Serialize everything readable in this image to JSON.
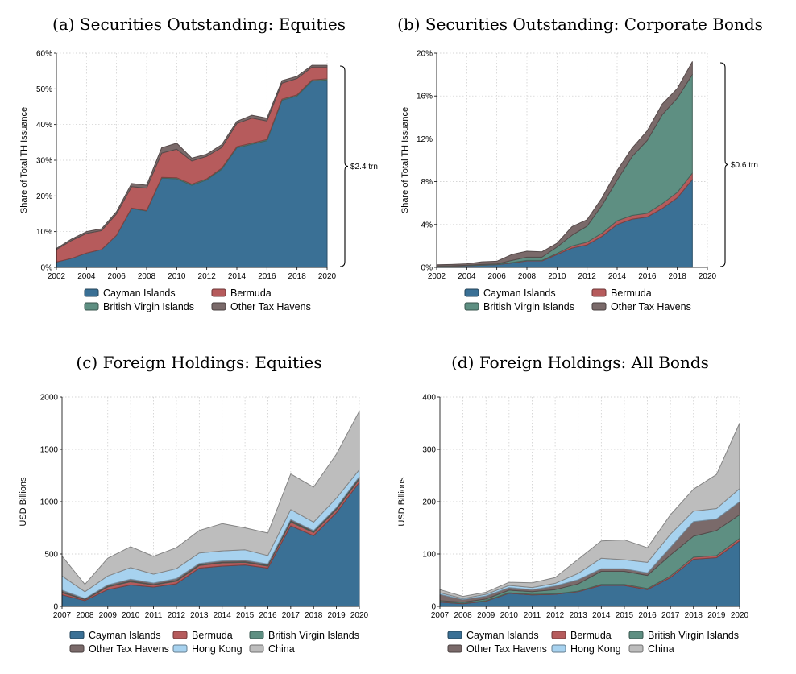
{
  "colors": {
    "cayman": "#3a7095",
    "bermuda": "#b65b5c",
    "bvi": "#5e8f82",
    "other": "#7a6a6a",
    "hongkong": "#a7d2ef",
    "china": "#bdbdbd"
  },
  "chart_data": [
    {
      "id": "a",
      "type": "area",
      "title": "(a) Securities Outstanding: Equities",
      "ylabel": "Share of Total TH Issuance",
      "x": [
        2002,
        2003,
        2004,
        2005,
        2006,
        2007,
        2008,
        2009,
        2010,
        2011,
        2012,
        2013,
        2014,
        2015,
        2016,
        2017,
        2018,
        2019,
        2020
      ],
      "xticks": [
        2002,
        2004,
        2006,
        2008,
        2010,
        2012,
        2014,
        2016,
        2018,
        2020
      ],
      "ylim": [
        0,
        60
      ],
      "yticks": [
        0,
        10,
        20,
        30,
        40,
        50,
        60
      ],
      "ytick_labels": [
        "0%",
        "10%",
        "20%",
        "30%",
        "40%",
        "50%",
        "60%"
      ],
      "series": [
        {
          "name": "Cayman Islands",
          "key": "cayman",
          "values": [
            1.5,
            2.5,
            4,
            5,
            9,
            16.5,
            15.8,
            25,
            24.8,
            23,
            24.5,
            27.5,
            33.5,
            34.5,
            35.5,
            46.8,
            48,
            52.2,
            52.5
          ]
        },
        {
          "name": "British Virgin Islands",
          "key": "bvi",
          "values": [
            0,
            0,
            0,
            0,
            0,
            0.1,
            0.1,
            0.2,
            0.3,
            0.3,
            0.3,
            0.3,
            0.3,
            0.3,
            0.3,
            0.3,
            0.3,
            0.3,
            0.3
          ]
        },
        {
          "name": "Bermuda",
          "key": "bermuda",
          "values": [
            3.5,
            5,
            5.5,
            5.3,
            6,
            6,
            6.3,
            6.8,
            8,
            6.5,
            6.3,
            5.8,
            6.5,
            7,
            5.2,
            4.5,
            4.6,
            3.6,
            3.3
          ]
        },
        {
          "name": "Other Tax Havens",
          "key": "other",
          "values": [
            0.3,
            0.4,
            0.5,
            0.5,
            0.6,
            0.9,
            0.8,
            1.5,
            1.7,
            0.8,
            0.6,
            0.8,
            0.6,
            0.8,
            0.8,
            0.7,
            0.6,
            0.5,
            0.5
          ]
        }
      ],
      "legend": [
        [
          "Cayman Islands",
          "cayman"
        ],
        [
          "Bermuda",
          "bermuda"
        ],
        [
          "British Virgin Islands",
          "bvi"
        ],
        [
          "Other Tax Havens",
          "other"
        ]
      ],
      "brace_label": "$2.4 trn"
    },
    {
      "id": "b",
      "type": "area",
      "title": "(b) Securities Outstanding: Corporate Bonds",
      "ylabel": "Share of Total TH Issuance",
      "x": [
        2002,
        2003,
        2004,
        2005,
        2006,
        2007,
        2008,
        2009,
        2010,
        2011,
        2012,
        2013,
        2014,
        2015,
        2016,
        2017,
        2018,
        2019
      ],
      "xticks": [
        2002,
        2004,
        2006,
        2008,
        2010,
        2012,
        2014,
        2016,
        2018,
        2020
      ],
      "ylim": [
        0,
        20
      ],
      "yticks": [
        0,
        4,
        8,
        12,
        16,
        20
      ],
      "ytick_labels": [
        "0%",
        "4%",
        "8%",
        "12%",
        "16%",
        "20%"
      ],
      "series": [
        {
          "name": "Cayman Islands",
          "key": "cayman",
          "values": [
            0.1,
            0.1,
            0.15,
            0.2,
            0.25,
            0.4,
            0.6,
            0.6,
            1.2,
            1.8,
            2.1,
            2.9,
            4,
            4.5,
            4.7,
            5.5,
            6.5,
            8.2
          ]
        },
        {
          "name": "Bermuda",
          "key": "bermuda",
          "values": [
            0.02,
            0.02,
            0.02,
            0.02,
            0.02,
            0.05,
            0.05,
            0.05,
            0.1,
            0.2,
            0.25,
            0.3,
            0.35,
            0.35,
            0.35,
            0.45,
            0.5,
            0.6
          ]
        },
        {
          "name": "British Virgin Islands",
          "key": "bvi",
          "values": [
            0.02,
            0.03,
            0.03,
            0.05,
            0.05,
            0.2,
            0.3,
            0.3,
            0.6,
            1,
            1.5,
            2.6,
            3.8,
            5.5,
            6.8,
            8.3,
            8.8,
            9.2
          ]
        },
        {
          "name": "Other Tax Havens",
          "key": "other",
          "values": [
            0.1,
            0.12,
            0.13,
            0.25,
            0.25,
            0.55,
            0.55,
            0.5,
            0.35,
            0.8,
            0.6,
            0.7,
            0.9,
            0.8,
            0.9,
            1,
            0.9,
            1.2
          ]
        }
      ],
      "legend": [
        [
          "Cayman Islands",
          "cayman"
        ],
        [
          "Bermuda",
          "bermuda"
        ],
        [
          "British Virgin Islands",
          "bvi"
        ],
        [
          "Other Tax Havens",
          "other"
        ]
      ],
      "brace_label": "$0.6 trn"
    },
    {
      "id": "c",
      "type": "area",
      "title": "(c) Foreign Holdings: Equities",
      "ylabel": "USD Billions",
      "x": [
        2007,
        2008,
        2009,
        2010,
        2011,
        2012,
        2013,
        2014,
        2015,
        2016,
        2017,
        2018,
        2019,
        2020
      ],
      "xticks": [
        2007,
        2008,
        2009,
        2010,
        2011,
        2012,
        2013,
        2014,
        2015,
        2016,
        2017,
        2018,
        2019,
        2020
      ],
      "ylim": [
        0,
        2000
      ],
      "yticks": [
        0,
        500,
        1000,
        1500,
        2000
      ],
      "ytick_labels": [
        "0",
        "500",
        "1000",
        "1500",
        "2000"
      ],
      "series": [
        {
          "name": "Cayman Islands",
          "key": "cayman",
          "values": [
            110,
            55,
            160,
            205,
            185,
            215,
            365,
            385,
            395,
            365,
            770,
            675,
            895,
            1185
          ]
        },
        {
          "name": "Bermuda",
          "key": "bermuda",
          "values": [
            20,
            10,
            25,
            30,
            20,
            25,
            25,
            30,
            25,
            20,
            35,
            30,
            30,
            30
          ]
        },
        {
          "name": "British Virgin Islands",
          "key": "bvi",
          "values": [
            5,
            2,
            5,
            5,
            3,
            5,
            5,
            5,
            5,
            5,
            10,
            7,
            8,
            10
          ]
        },
        {
          "name": "Other Tax Havens",
          "key": "other",
          "values": [
            20,
            8,
            15,
            20,
            15,
            20,
            15,
            15,
            15,
            15,
            15,
            12,
            12,
            15
          ]
        },
        {
          "name": "Hong Kong",
          "key": "hongkong",
          "values": [
            135,
            65,
            85,
            110,
            85,
            95,
            100,
            95,
            100,
            80,
            95,
            80,
            90,
            65
          ]
        },
        {
          "name": "China",
          "key": "china",
          "values": [
            190,
            70,
            170,
            200,
            170,
            200,
            215,
            260,
            210,
            215,
            340,
            335,
            420,
            560
          ]
        }
      ],
      "legend": [
        [
          "Cayman Islands",
          "cayman"
        ],
        [
          "Bermuda",
          "bermuda"
        ],
        [
          "British Virgin Islands",
          "bvi"
        ],
        [
          "Other Tax Havens",
          "other"
        ],
        [
          "Hong Kong",
          "hongkong"
        ],
        [
          "China",
          "china"
        ]
      ]
    },
    {
      "id": "d",
      "type": "area",
      "title": "(d) Foreign Holdings: All Bonds",
      "ylabel": "USD Billions",
      "x": [
        2007,
        2008,
        2009,
        2010,
        2011,
        2012,
        2013,
        2014,
        2015,
        2016,
        2017,
        2018,
        2019,
        2020
      ],
      "xticks": [
        2007,
        2008,
        2009,
        2010,
        2011,
        2012,
        2013,
        2014,
        2015,
        2016,
        2017,
        2018,
        2019,
        2020
      ],
      "ylim": [
        0,
        400
      ],
      "yticks": [
        0,
        100,
        200,
        300,
        400
      ],
      "ytick_labels": [
        "0",
        "100",
        "200",
        "300",
        "400"
      ],
      "series": [
        {
          "name": "Cayman Islands",
          "key": "cayman",
          "values": [
            8,
            5,
            10,
            25,
            22,
            23,
            28,
            40,
            40,
            32,
            55,
            90,
            93,
            125
          ]
        },
        {
          "name": "Bermuda",
          "key": "bermuda",
          "values": [
            1,
            1,
            1,
            1,
            1,
            1,
            1,
            2,
            2,
            2,
            3,
            4,
            4,
            5
          ]
        },
        {
          "name": "British Virgin Islands",
          "key": "bvi",
          "values": [
            2,
            2,
            3,
            5,
            5,
            8,
            14,
            25,
            25,
            25,
            40,
            40,
            48,
            45
          ]
        },
        {
          "name": "Other Tax Havens",
          "key": "other",
          "values": [
            12,
            5,
            6,
            5,
            4,
            7,
            8,
            5,
            5,
            5,
            15,
            28,
            22,
            25
          ]
        },
        {
          "name": "Hong Kong",
          "key": "hongkong",
          "values": [
            3,
            2,
            3,
            4,
            4,
            5,
            12,
            20,
            17,
            20,
            25,
            20,
            20,
            25
          ]
        },
        {
          "name": "China",
          "key": "china",
          "values": [
            6,
            4,
            4,
            6,
            9,
            11,
            27,
            33,
            38,
            28,
            37,
            42,
            65,
            125
          ]
        }
      ],
      "legend": [
        [
          "Cayman Islands",
          "cayman"
        ],
        [
          "Bermuda",
          "bermuda"
        ],
        [
          "British Virgin Islands",
          "bvi"
        ],
        [
          "Other Tax Havens",
          "other"
        ],
        [
          "Hong Kong",
          "hongkong"
        ],
        [
          "China",
          "china"
        ]
      ]
    }
  ]
}
